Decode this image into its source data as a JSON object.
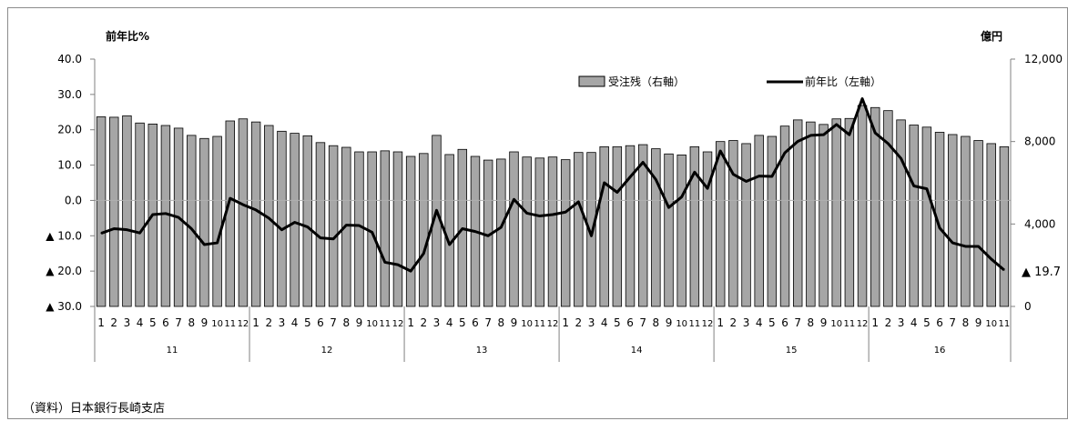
{
  "chart_data": {
    "type": "bar",
    "combo": "bar+line (dual axis)",
    "left_axis": {
      "title": "前年比%",
      "range": [
        -30,
        40
      ],
      "ticks": [
        {
          "value": 40,
          "label": "40.0"
        },
        {
          "value": 30,
          "label": "30.0"
        },
        {
          "value": 20,
          "label": "20.0"
        },
        {
          "value": 10,
          "label": "10.0"
        },
        {
          "value": 0,
          "label": "0.0"
        },
        {
          "value": -10,
          "label": "▲ 10.0"
        },
        {
          "value": -20,
          "label": "▲ 20.0"
        },
        {
          "value": -30,
          "label": "▲ 30.0"
        }
      ]
    },
    "right_axis": {
      "title": "億円",
      "range": [
        0,
        12000
      ],
      "ticks": [
        {
          "value": 12000,
          "label": "12,000"
        },
        {
          "value": 8000,
          "label": "8,000"
        },
        {
          "value": 4000,
          "label": "4,000"
        },
        {
          "value": 0,
          "label": "0"
        }
      ]
    },
    "months": [
      "1",
      "2",
      "3",
      "4",
      "5",
      "6",
      "7",
      "8",
      "9",
      "10",
      "11",
      "12",
      "1",
      "2",
      "3",
      "4",
      "5",
      "6",
      "7",
      "8",
      "9",
      "10",
      "11",
      "12",
      "1",
      "2",
      "3",
      "4",
      "5",
      "6",
      "7",
      "8",
      "9",
      "10",
      "11",
      "12",
      "1",
      "2",
      "3",
      "4",
      "5",
      "6",
      "7",
      "8",
      "9",
      "10",
      "11",
      "12",
      "1",
      "2",
      "3",
      "4",
      "5",
      "6",
      "7",
      "8",
      "9",
      "10",
      "11",
      "12",
      "1",
      "2",
      "3",
      "4",
      "5",
      "6",
      "7",
      "8",
      "9",
      "10",
      "11"
    ],
    "years": [
      {
        "label": "11",
        "count": 12
      },
      {
        "label": "12",
        "count": 12
      },
      {
        "label": "13",
        "count": 12
      },
      {
        "label": "14",
        "count": 12
      },
      {
        "label": "15",
        "count": 12
      },
      {
        "label": "16",
        "count": 11
      }
    ],
    "series": [
      {
        "name": "受注残（右軸）",
        "kind": "bar",
        "axis": "right",
        "values": [
          9200,
          9180,
          9250,
          8900,
          8850,
          8780,
          8650,
          8300,
          8150,
          8250,
          9000,
          9100,
          8950,
          8780,
          8500,
          8400,
          8280,
          7950,
          7800,
          7720,
          7500,
          7500,
          7550,
          7500,
          7280,
          7420,
          8300,
          7370,
          7620,
          7280,
          7100,
          7150,
          7500,
          7250,
          7200,
          7250,
          7120,
          7470,
          7470,
          7750,
          7750,
          7800,
          7850,
          7650,
          7400,
          7350,
          7750,
          7500,
          8000,
          8050,
          7900,
          8300,
          8250,
          8750,
          9050,
          8950,
          8830,
          9100,
          9120,
          9750,
          9650,
          9500,
          9050,
          8800,
          8700,
          8450,
          8340,
          8250,
          8050,
          7900,
          7750
        ]
      },
      {
        "name": "前年比（左軸）",
        "kind": "line",
        "axis": "left",
        "values": [
          -9.3,
          -8.0,
          -8.3,
          -9.2,
          -4.0,
          -3.7,
          -4.8,
          -8.0,
          -12.5,
          -12.0,
          0.6,
          -1.2,
          -2.7,
          -5.0,
          -8.3,
          -6.2,
          -7.5,
          -10.6,
          -10.9,
          -7.0,
          -7.1,
          -9.0,
          -17.5,
          -18.2,
          -20.0,
          -15.0,
          -2.8,
          -12.5,
          -8.0,
          -8.8,
          -10.0,
          -7.6,
          0.3,
          -3.6,
          -4.4,
          -4.0,
          -3.3,
          -0.4,
          -10.0,
          5.0,
          2.3,
          6.6,
          10.8,
          5.9,
          -2.0,
          1.0,
          8.0,
          3.4,
          14.0,
          7.4,
          5.4,
          6.9,
          6.8,
          13.5,
          16.7,
          18.4,
          18.6,
          21.5,
          18.6,
          28.8,
          19.1,
          16.1,
          11.9,
          4.1,
          3.3,
          -7.8,
          -12.0,
          -13.0,
          -13.0,
          -16.6,
          -19.7
        ]
      }
    ],
    "legend": {
      "placement": "top-right",
      "entries": [
        "受注残（右軸）",
        "前年比（左軸）"
      ]
    },
    "annotation": "▲ 19.7",
    "source": "（資料）日本銀行長崎支店",
    "grid": false
  }
}
